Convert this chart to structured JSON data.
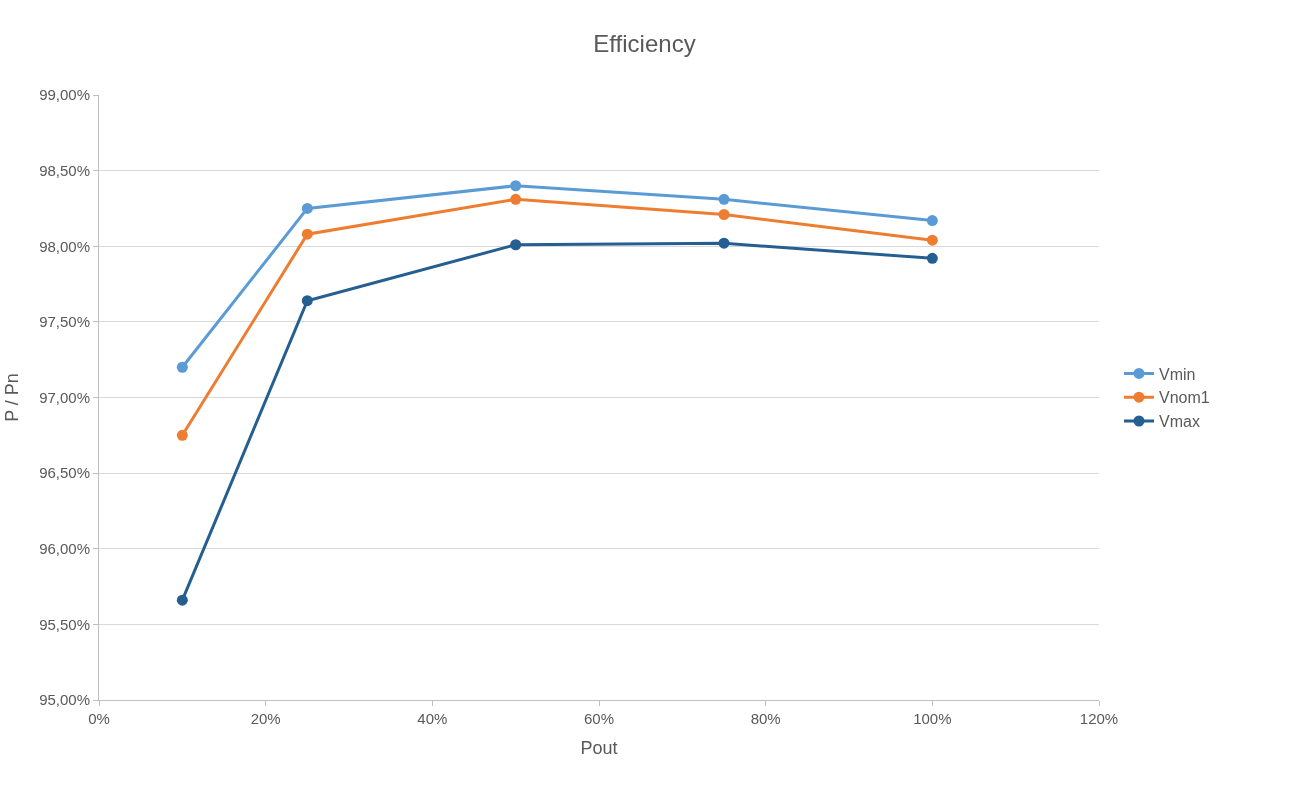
{
  "chart_data": {
    "type": "line",
    "title": "Efficiency",
    "xlabel": "Pout",
    "ylabel": "P / Pn",
    "x": [
      10,
      25,
      50,
      75,
      100
    ],
    "series": [
      {
        "name": "Vmin",
        "color": "#5b9bd5",
        "values": [
          97.2,
          98.25,
          98.4,
          98.31,
          98.17
        ]
      },
      {
        "name": "Vnom1",
        "color": "#ed7d31",
        "values": [
          96.75,
          98.08,
          98.31,
          98.21,
          98.04
        ]
      },
      {
        "name": "Vmax",
        "color": "#255e91",
        "values": [
          95.66,
          97.64,
          98.01,
          98.02,
          97.92
        ]
      }
    ],
    "xlim": [
      0,
      120
    ],
    "xticks": [
      {
        "value": 0,
        "label": "0%"
      },
      {
        "value": 20,
        "label": "20%"
      },
      {
        "value": 40,
        "label": "40%"
      },
      {
        "value": 60,
        "label": "60%"
      },
      {
        "value": 80,
        "label": "80%"
      },
      {
        "value": 100,
        "label": "100%"
      },
      {
        "value": 120,
        "label": "120%"
      }
    ],
    "ylim": [
      95,
      99
    ],
    "yticks": [
      {
        "value": 95,
        "label": "95,00%"
      },
      {
        "value": 95.5,
        "label": "95,50%"
      },
      {
        "value": 96,
        "label": "96,00%"
      },
      {
        "value": 96.5,
        "label": "96,50%"
      },
      {
        "value": 97,
        "label": "97,00%"
      },
      {
        "value": 97.5,
        "label": "97,50%"
      },
      {
        "value": 98,
        "label": "98,00%"
      },
      {
        "value": 98.5,
        "label": "98,50%"
      },
      {
        "value": 99,
        "label": "99,00%"
      }
    ],
    "grid": "y",
    "legend": "right",
    "marker": "circle",
    "line_style": "solid"
  }
}
